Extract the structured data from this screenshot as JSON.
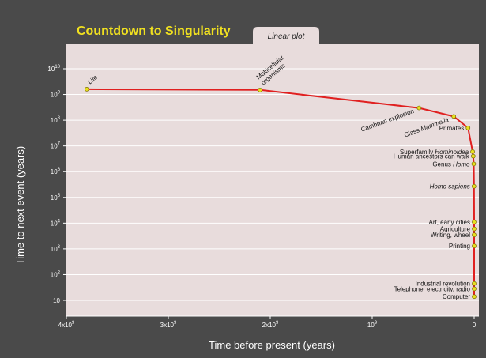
{
  "chart_data": {
    "type": "line",
    "title": "Countdown to Singularity",
    "tab_label": "Linear plot",
    "xlabel": "Time before present (years)",
    "ylabel": "Time to next event (years)",
    "x_scale": "linear",
    "y_scale": "log",
    "xlim": [
      4000000000,
      0
    ],
    "ylim": [
      10,
      30000000000
    ],
    "x_ticks": [
      {
        "value": 4000000000,
        "label": "4x10",
        "sup": "9"
      },
      {
        "value": 3000000000,
        "label": "3x10",
        "sup": "9"
      },
      {
        "value": 2000000000,
        "label": "2x10",
        "sup": "9"
      },
      {
        "value": 1000000000,
        "label": "10",
        "sup": "9"
      },
      {
        "value": 0,
        "label": "0",
        "sup": ""
      }
    ],
    "y_ticks": [
      {
        "value": 10000000000,
        "label": "10",
        "sup": "10"
      },
      {
        "value": 1000000000,
        "label": "10",
        "sup": "9"
      },
      {
        "value": 100000000,
        "label": "10",
        "sup": "8"
      },
      {
        "value": 10000000,
        "label": "10",
        "sup": "7"
      },
      {
        "value": 1000000,
        "label": "10",
        "sup": "6"
      },
      {
        "value": 100000,
        "label": "10",
        "sup": "5"
      },
      {
        "value": 10000,
        "label": "10",
        "sup": "4"
      },
      {
        "value": 1000,
        "label": "10",
        "sup": "3"
      },
      {
        "value": 100,
        "label": "10",
        "sup": "2"
      },
      {
        "value": 10,
        "label": "10",
        "sup": ""
      }
    ],
    "grid": true,
    "colors": {
      "background": "#4a4a4a",
      "plot_area": "#e8dcdc",
      "gridline": "#ffffff",
      "curve": "#e02020",
      "marker": "#e8e020",
      "title": "#f0e020",
      "axis_text": "#ffffff",
      "tab": "#e8dcdc"
    },
    "points": [
      {
        "label": "Life",
        "x": 3800000000,
        "y": 1600000000,
        "italic": [],
        "pos": "up"
      },
      {
        "label": "Multicellular\norganisms",
        "x": 2100000000,
        "y": 1500000000,
        "italic": [],
        "pos": "up"
      },
      {
        "label": "Cambrian explosion",
        "x": 540000000,
        "y": 300000000,
        "italic": [],
        "pos": "down"
      },
      {
        "label": "Class Mammalia",
        "x": 200000000,
        "y": 140000000,
        "italic": [
          "Mammalia"
        ],
        "pos": "down"
      },
      {
        "label": "Primates",
        "x": 60000000,
        "y": 50000000,
        "italic": [],
        "pos": "left"
      },
      {
        "label": "Superfamily Hominoidea",
        "x": 15000000,
        "y": 6000000,
        "italic": [
          "Hominoidea"
        ],
        "pos": "left"
      },
      {
        "label": "Human ancestors can walk",
        "x": 9000000,
        "y": 4000000,
        "italic": [],
        "pos": "left"
      },
      {
        "label": "Genus Homo",
        "x": 4000000,
        "y": 2000000,
        "italic": [
          "Homo"
        ],
        "pos": "left"
      },
      {
        "label": "Homo sapiens",
        "x": 1500000,
        "y": 270000,
        "italic": [
          "Homo",
          "sapiens"
        ],
        "pos": "left"
      },
      {
        "label": "Art, early cities",
        "x": 200000,
        "y": 11000,
        "italic": [],
        "pos": "left"
      },
      {
        "label": "Agriculture",
        "x": 100000,
        "y": 6000,
        "italic": [],
        "pos": "left"
      },
      {
        "label": "Writing, wheel",
        "x": 50000,
        "y": 3500,
        "italic": [],
        "pos": "left"
      },
      {
        "label": "Printing",
        "x": 20000,
        "y": 1300,
        "italic": [],
        "pos": "left"
      },
      {
        "label": "Industrial revolution",
        "x": 5000,
        "y": 45,
        "italic": [],
        "pos": "left"
      },
      {
        "label": "Telephone, electricity, radio",
        "x": 2000,
        "y": 28,
        "italic": [],
        "pos": "left"
      },
      {
        "label": "Computer",
        "x": 1000,
        "y": 14,
        "italic": [],
        "pos": "left"
      }
    ]
  }
}
